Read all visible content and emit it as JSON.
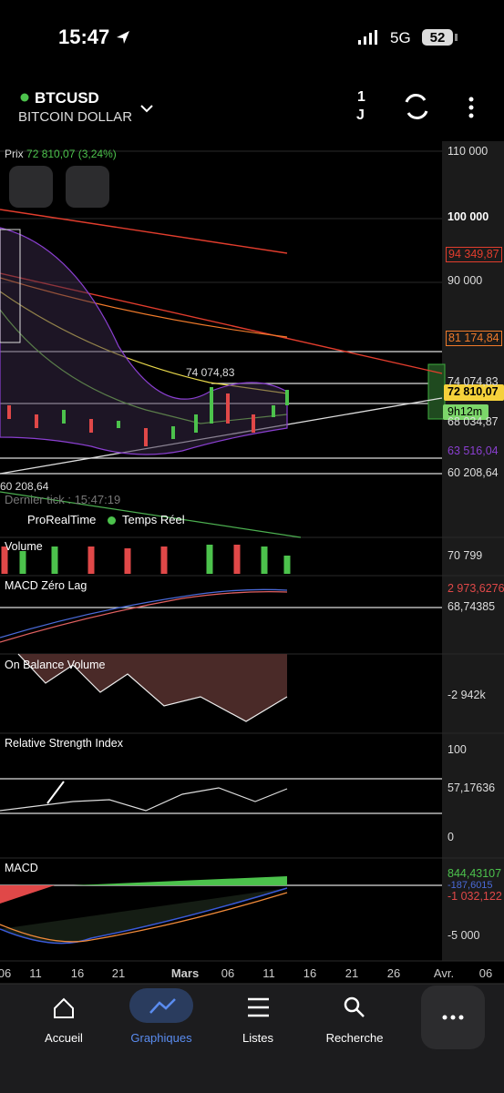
{
  "status_bar": {
    "time": "15:47",
    "network": "5G",
    "battery": "52"
  },
  "header": {
    "symbol": "BTCUSD",
    "name": "BITCOIN DOLLAR",
    "period_number": "1",
    "period_unit": "J"
  },
  "price_panel": {
    "label": "Prix",
    "price": "72 810,07",
    "change": "(3,24%)",
    "axis_labels": [
      "110 000",
      "100 000",
      "94 349,87",
      "90 000",
      "81 174,84",
      "74 074,83",
      "72 810,07",
      "9h12m",
      "68 034,87",
      "63 516,04",
      "60 208,64"
    ],
    "high_label": "74 074,83",
    "low_label": "60 208,64",
    "last_tick": "Dernier tick : 15:47:19",
    "provider": "ProRealTime",
    "realtime": "Temps Réel"
  },
  "panels": [
    {
      "title": "Volume",
      "labels": [
        "70 799"
      ]
    },
    {
      "title": "MACD Zéro Lag",
      "labels": [
        "2 973,6276",
        "68,74385"
      ]
    },
    {
      "title": "On Balance Volume",
      "labels": [
        "-2 942k"
      ]
    },
    {
      "title": "Relative Strength Index",
      "labels": [
        "100",
        "57,17636",
        "0"
      ]
    },
    {
      "title": "MACD",
      "labels": [
        "844,43107",
        "-187,6015",
        "-1 032,122",
        "-5 000"
      ]
    }
  ],
  "x_axis": [
    "06",
    "11",
    "16",
    "21",
    "Mars",
    "06",
    "11",
    "16",
    "21",
    "26",
    "Avr.",
    "06"
  ],
  "nav": [
    "Accueil",
    "Graphiques",
    "Listes",
    "Recherche"
  ]
}
